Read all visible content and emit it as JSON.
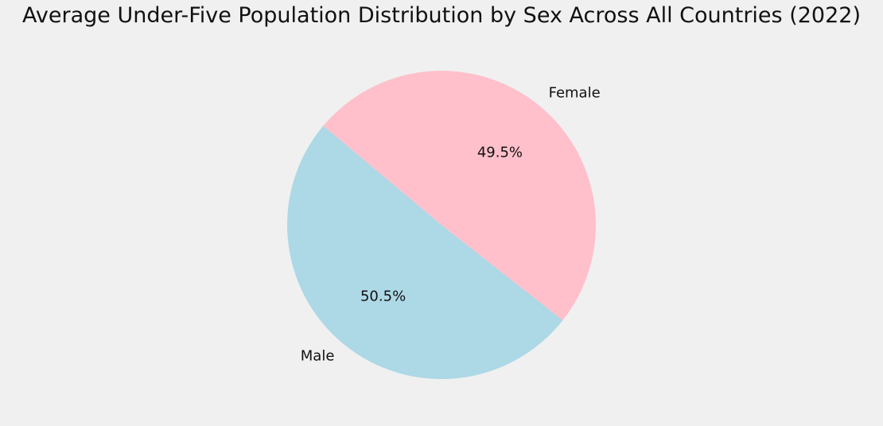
{
  "chart_data": {
    "type": "pie",
    "title": "Average Under-Five Population Distribution by Sex Across All Countries (2022)",
    "slices": [
      {
        "label": "Male",
        "value": 50.5,
        "pct_label": "50.5%",
        "color": "#add8e6"
      },
      {
        "label": "Female",
        "value": 49.5,
        "pct_label": "49.5%",
        "color": "#ffc0cb"
      }
    ],
    "start_angle_deg": 140,
    "direction": "counterclockwise"
  },
  "colors": {
    "background": "#f0f0f0",
    "text": "#111111"
  }
}
